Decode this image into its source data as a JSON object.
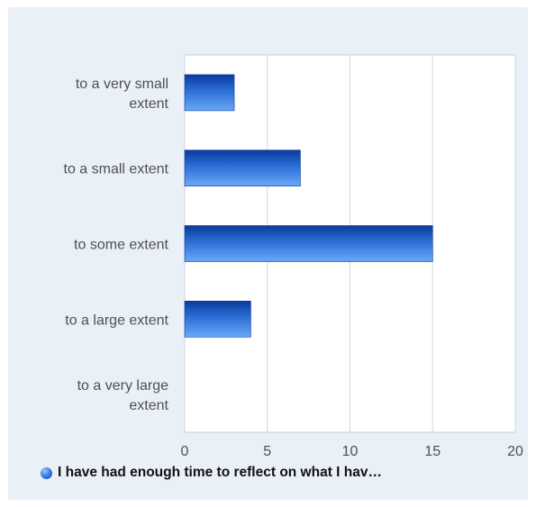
{
  "chart_data": {
    "type": "bar",
    "orientation": "horizontal",
    "categories": [
      [
        "to a very small",
        "extent"
      ],
      [
        "to a small extent"
      ],
      [
        "to some extent"
      ],
      [
        "to a large extent"
      ],
      [
        "to a very large",
        "extent"
      ]
    ],
    "series": [
      {
        "name": "I have had enough time to reflect on what I hav…",
        "values": [
          3,
          7,
          15,
          4,
          0
        ]
      }
    ],
    "xlim": [
      0,
      20
    ],
    "xticks": [
      "0",
      "5",
      "10",
      "15",
      "20"
    ],
    "grid": true,
    "legend_position": "bottom",
    "colors": {
      "bar_dark": "#0a3a9c",
      "bar_light": "#5fa0f5",
      "plot_bg": "#eaf0f7",
      "gridline": "#cfd8e3",
      "text": "#505050"
    }
  }
}
